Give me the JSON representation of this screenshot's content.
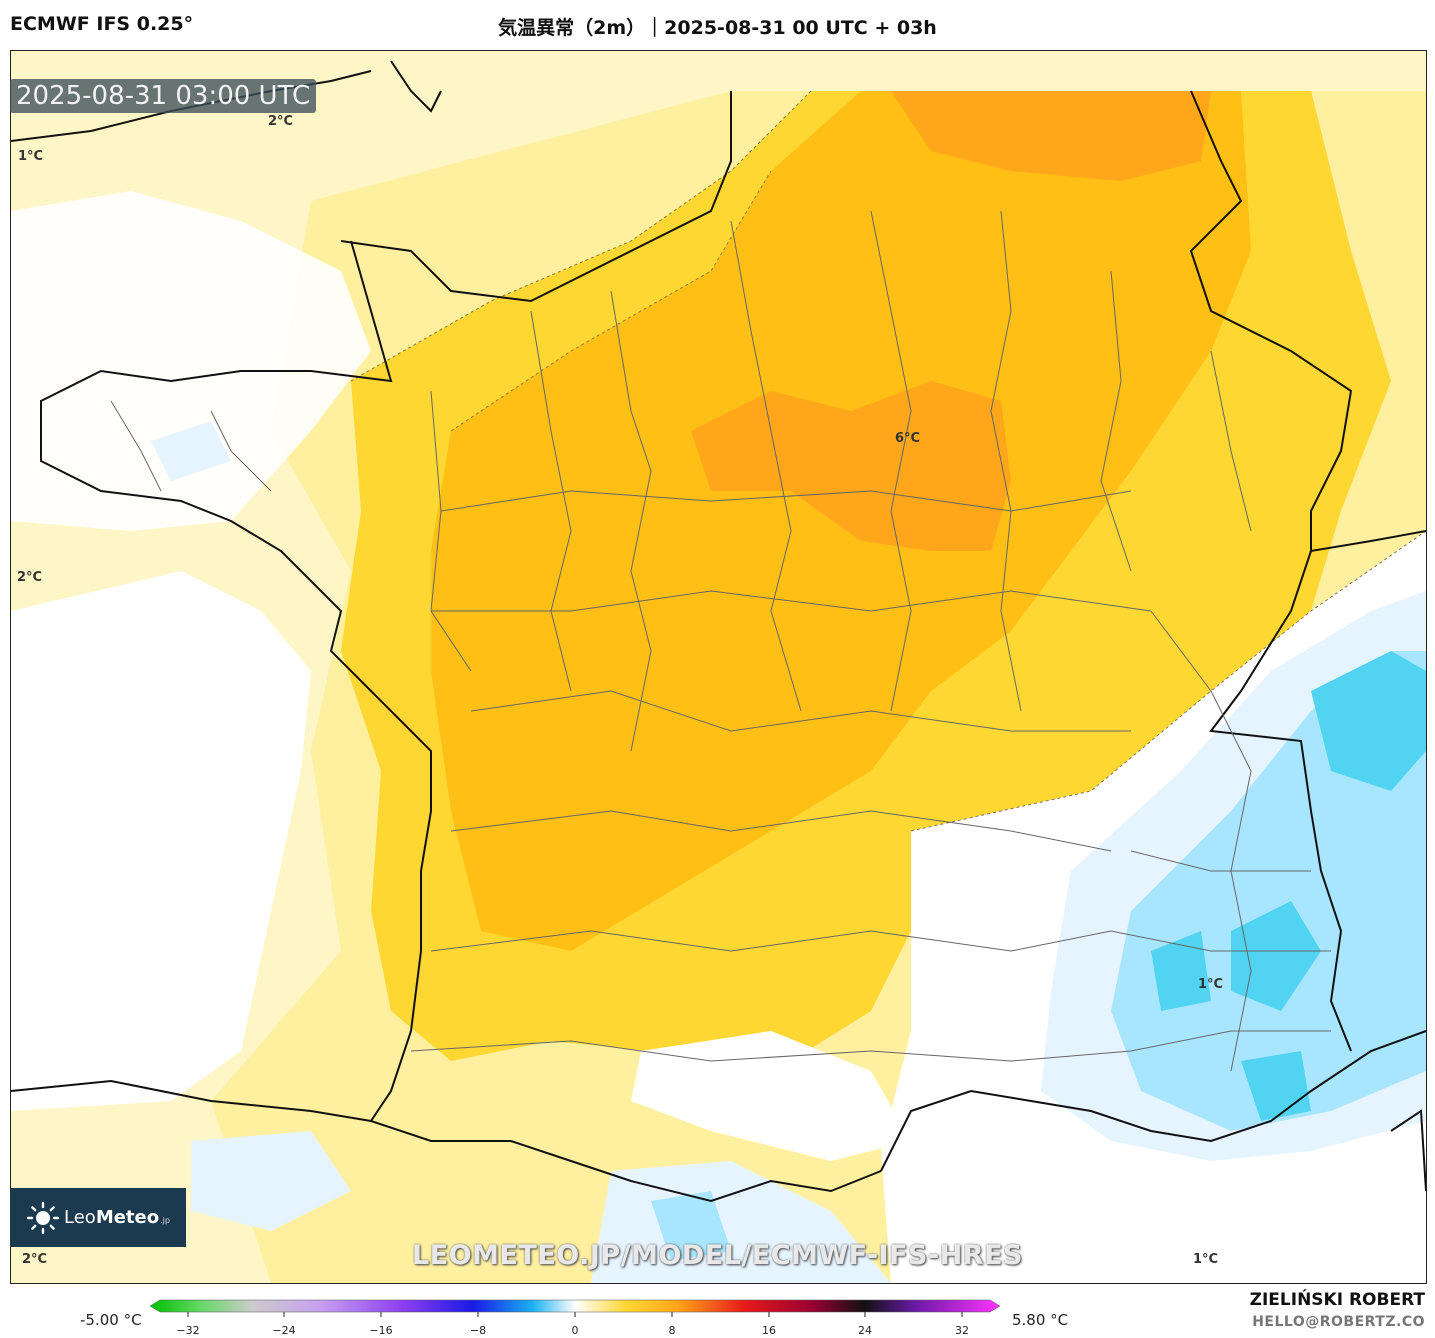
{
  "header": {
    "model": "ECMWF IFS 0.25°",
    "title": "気温異常（2m）｜2025-08-31 00 UTC + 03h"
  },
  "map": {
    "timestamp": "2025-08-31 03:00 UTC",
    "labels": [
      "2°C",
      "1°C",
      "2°C",
      "6°C",
      "1°C",
      "2°C",
      "1°C"
    ],
    "watermark": "LEOMETEO.JP/MODEL/ECMWF-IFS-HRES",
    "colors": {
      "sea_pale": "#fff6c8",
      "light_yellow": "#fff0a0",
      "yellow": "#ffd733",
      "gold": "#ffbf14",
      "orange": "#ffa61a",
      "white": "#ffffff",
      "pale_blue": "#e6f4ff",
      "light_blue": "#a8e6ff",
      "cyan": "#50d4f2"
    }
  },
  "logo": {
    "brand_light": "Leo",
    "brand_bold": "Meteo",
    "suffix": ".jp"
  },
  "colorbar": {
    "min_label": "-5.00 °C",
    "max_label": "5.80 °C",
    "ticks": [
      "−32",
      "−24",
      "−16",
      "−8",
      "0",
      "8",
      "16",
      "24",
      "32"
    ]
  },
  "footer": {
    "author": "ZIELIŃSKI ROBERT",
    "email": "HELLO@ROBERTZ.CO"
  }
}
